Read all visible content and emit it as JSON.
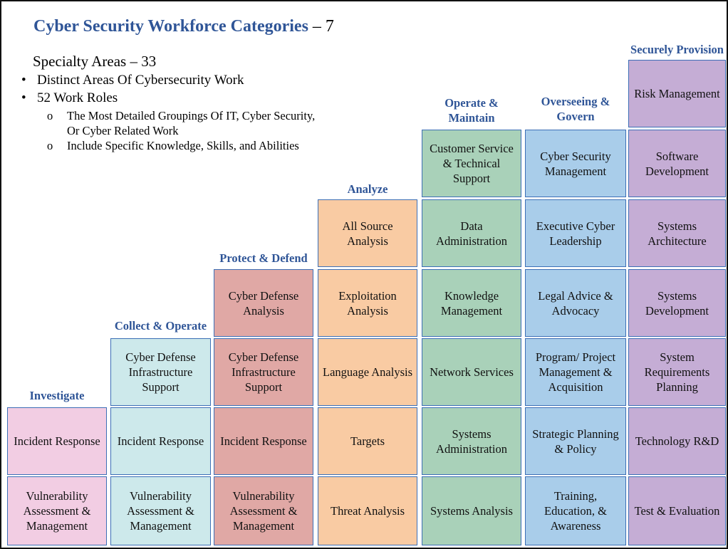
{
  "title": {
    "main": "Cyber Security Workforce Categories",
    "suffix": " – 7"
  },
  "specialty": "Specialty Areas – 33",
  "bullets": {
    "item1": "Distinct Areas Of Cybersecurity Work",
    "item2": "52 Work Roles",
    "sub1": "The Most Detailed Groupings Of IT, Cyber Security, Or Cyber Related Work",
    "sub2": "Include Specific Knowledge, Skills, and Abilities"
  },
  "colors": {
    "investigate": "#f2cde3",
    "collect_operate": "#cde9eb",
    "protect_defend": "#e0a8a5",
    "analyze": "#f9cba3",
    "operate_maintain": "#a9d1b9",
    "oversee_govern": "#a9cdea",
    "securely_provision": "#c5add5",
    "header_text": "#2f5597",
    "cell_border": "#3d6fb6"
  },
  "categories": {
    "investigate": {
      "header": "Investigate",
      "cells": [
        "Incident Response",
        "Vulnerability Assessment & Management"
      ]
    },
    "collect_operate": {
      "header": "Collect & Operate",
      "cells": [
        "Cyber Defense Infrastructure Support",
        "Incident Response",
        "Vulnerability Assessment & Management"
      ]
    },
    "protect_defend": {
      "header": "Protect & Defend",
      "cells": [
        "Cyber Defense Analysis",
        "Cyber Defense Infrastructure Support",
        "Incident Response",
        "Vulnerability Assessment & Management"
      ]
    },
    "analyze": {
      "header": "Analyze",
      "cells": [
        "All Source Analysis",
        "Exploitation Analysis",
        "Language Analysis",
        "Targets",
        "Threat Analysis"
      ]
    },
    "operate_maintain": {
      "header": "Operate & Maintain",
      "cells": [
        "Customer Service & Technical Support",
        "Data Administration",
        "Knowledge Management",
        "Network Services",
        "Systems Administration",
        "Systems Analysis"
      ]
    },
    "oversee_govern": {
      "header": "Overseeing & Govern",
      "cells": [
        "Cyber Security Management",
        "Executive Cyber Leadership",
        "Legal Advice & Advocacy",
        "Program/ Project Management & Acquisition",
        "Strategic Planning & Policy",
        "Training, Education, & Awareness"
      ]
    },
    "securely_provision": {
      "header": "Securely Provision",
      "cells": [
        "Risk Management",
        "Software Development",
        "Systems Architecture",
        "Systems Development",
        "System Requirements Planning",
        "Technology R&D",
        "Test & Evaluation"
      ]
    }
  }
}
